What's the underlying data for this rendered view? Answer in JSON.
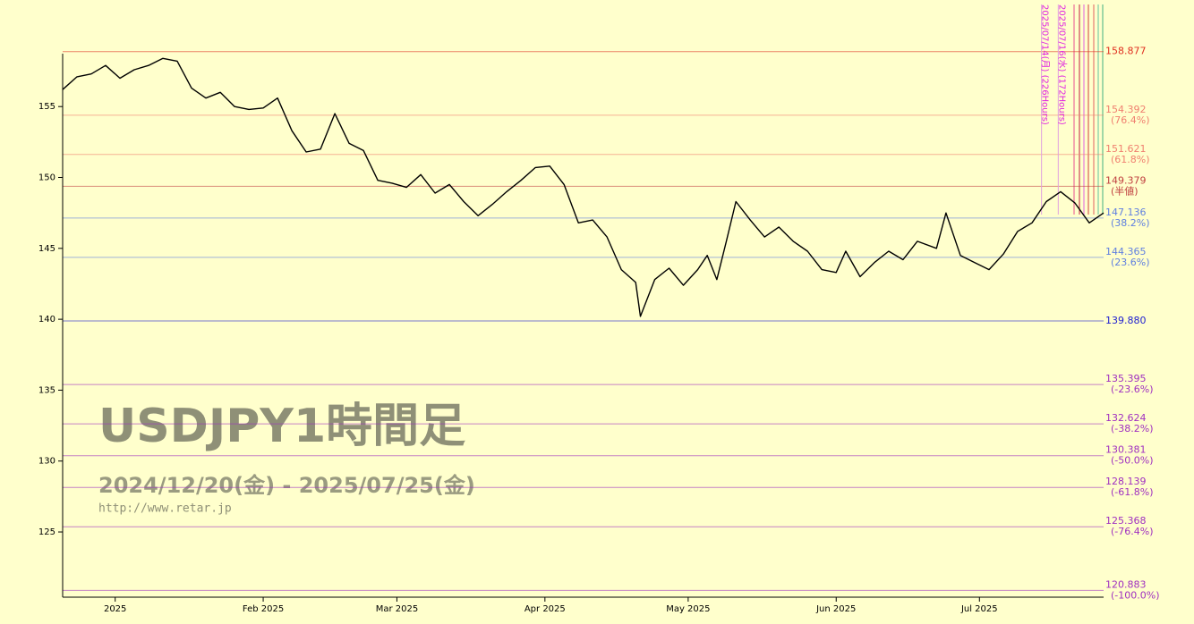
{
  "chart_data": {
    "type": "line",
    "watermark_title": "USDJPY1時間足",
    "watermark_subtitle": "2024/12/20(金) - 2025/07/25(金)",
    "watermark_url": "http://www.retar.jp",
    "x": [
      0,
      3,
      6,
      9,
      12,
      15,
      18,
      21,
      24,
      27,
      30,
      33,
      36,
      39,
      42,
      45,
      48,
      51,
      54,
      57,
      60,
      63,
      66,
      69,
      72,
      75,
      78,
      81,
      84,
      87,
      90,
      93,
      96,
      99,
      102,
      105,
      108,
      111,
      114,
      117,
      120,
      121,
      124,
      127,
      130,
      133,
      135,
      137,
      139,
      141,
      144,
      147,
      150,
      153,
      156,
      159,
      162,
      164,
      167,
      170,
      173,
      176,
      179,
      183,
      185,
      188,
      191,
      194,
      197,
      200,
      203,
      206,
      209,
      212,
      215,
      218
    ],
    "series": [
      {
        "name": "USDJPY",
        "color": "#000000",
        "values": [
          156.2,
          157.1,
          157.3,
          157.9,
          157.0,
          157.6,
          157.9,
          158.4,
          158.2,
          156.3,
          155.6,
          156.0,
          155.0,
          154.8,
          154.9,
          155.6,
          153.3,
          151.8,
          152.0,
          154.5,
          152.4,
          151.9,
          149.8,
          149.6,
          149.3,
          150.2,
          148.9,
          149.5,
          148.3,
          147.3,
          148.1,
          149.0,
          149.8,
          150.7,
          150.8,
          149.5,
          146.8,
          147.0,
          145.8,
          143.5,
          142.6,
          140.2,
          142.8,
          143.6,
          142.4,
          143.5,
          144.5,
          142.8,
          145.5,
          148.3,
          147.0,
          145.8,
          146.5,
          145.5,
          144.8,
          143.5,
          143.3,
          144.8,
          143.0,
          144.0,
          144.8,
          144.2,
          145.5,
          145.0,
          147.5,
          144.5,
          144.0,
          143.5,
          144.6,
          146.2,
          146.8,
          148.3,
          149.0,
          148.2,
          146.8,
          147.5
        ]
      }
    ],
    "xlim": [
      0,
      218
    ],
    "xticks": [
      {
        "value": 11,
        "label": "2025"
      },
      {
        "value": 42,
        "label": "Feb 2025"
      },
      {
        "value": 70,
        "label": "Mar 2025"
      },
      {
        "value": 101,
        "label": "Apr 2025"
      },
      {
        "value": 131,
        "label": "May 2025"
      },
      {
        "value": 162,
        "label": "Jun 2025"
      },
      {
        "value": 192,
        "label": "Jul 2025"
      }
    ],
    "ylim": [
      120.4,
      162.2
    ],
    "yticks": [
      125,
      130,
      135,
      140,
      145,
      150,
      155
    ],
    "levels": [
      {
        "value": 158.877,
        "label": "158.877",
        "color": "#e03020"
      },
      {
        "value": 154.392,
        "label": "154.392",
        "note": "(76.4%)",
        "color": "#f08070"
      },
      {
        "value": 151.621,
        "label": "151.621",
        "note": "(61.8%)",
        "color": "#f08070"
      },
      {
        "value": 149.379,
        "label": "149.379",
        "note": "(半値)",
        "color": "#c04040"
      },
      {
        "value": 147.136,
        "label": "147.136",
        "note": "(38.2%)",
        "color": "#6080e0"
      },
      {
        "value": 144.365,
        "label": "144.365",
        "note": "(23.6%)",
        "color": "#6080e0"
      },
      {
        "value": 139.88,
        "label": "139.880",
        "color": "#2020d0"
      },
      {
        "value": 135.395,
        "label": "135.395",
        "note": "(-23.6%)",
        "color": "#a030c0"
      },
      {
        "value": 132.624,
        "label": "132.624",
        "note": "(-38.2%)",
        "color": "#a030c0"
      },
      {
        "value": 130.381,
        "label": "130.381",
        "note": "(-50.0%)",
        "color": "#a030c0"
      },
      {
        "value": 128.139,
        "label": "128.139",
        "note": "(-61.8%)",
        "color": "#a030c0"
      },
      {
        "value": 125.368,
        "label": "125.368",
        "note": "(-76.4%)",
        "color": "#a030c0"
      },
      {
        "value": 120.883,
        "label": "120.883",
        "note": "(-100.0%)",
        "color": "#a030c0"
      }
    ],
    "annotations": [
      {
        "x": 205,
        "text": "2025/07/14(月) (226Hours)"
      },
      {
        "x": 208.5,
        "text": "2025/07/16(水) (172Hours)"
      }
    ]
  }
}
